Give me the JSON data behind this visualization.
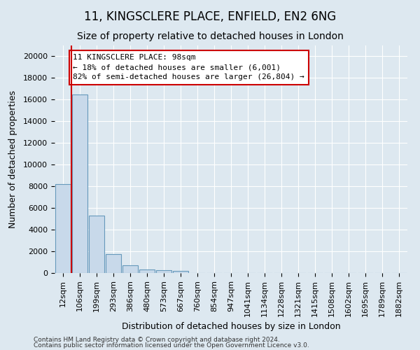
{
  "title1": "11, KINGSCLERE PLACE, ENFIELD, EN2 6NG",
  "title2": "Size of property relative to detached houses in London",
  "xlabel": "Distribution of detached houses by size in London",
  "ylabel": "Number of detached properties",
  "categories": [
    "12sqm",
    "106sqm",
    "199sqm",
    "293sqm",
    "386sqm",
    "480sqm",
    "573sqm",
    "667sqm",
    "760sqm",
    "854sqm",
    "947sqm",
    "1041sqm",
    "1134sqm",
    "1228sqm",
    "1321sqm",
    "1415sqm",
    "1508sqm",
    "1602sqm",
    "1695sqm",
    "1789sqm",
    "1882sqm"
  ],
  "values": [
    8200,
    16500,
    5300,
    1750,
    700,
    350,
    280,
    220,
    0,
    0,
    0,
    0,
    0,
    0,
    0,
    0,
    0,
    0,
    0,
    0,
    0
  ],
  "bar_color": "#c8d9ea",
  "bar_edge_color": "#6699bb",
  "marker_line_color": "#cc0000",
  "annotation_text": "11 KINGSCLERE PLACE: 98sqm\n← 18% of detached houses are smaller (6,001)\n82% of semi-detached houses are larger (26,804) →",
  "annotation_box_color": "#ffffff",
  "annotation_box_edgecolor": "#cc0000",
  "ylim": [
    0,
    21000
  ],
  "yticks": [
    0,
    2000,
    4000,
    6000,
    8000,
    10000,
    12000,
    14000,
    16000,
    18000,
    20000
  ],
  "footer1": "Contains HM Land Registry data © Crown copyright and database right 2024.",
  "footer2": "Contains public sector information licensed under the Open Government Licence v3.0.",
  "background_color": "#dde8f0",
  "plot_bg_color": "#dde8f0",
  "grid_color": "#ffffff",
  "title1_fontsize": 12,
  "title2_fontsize": 10,
  "xlabel_fontsize": 9,
  "ylabel_fontsize": 9,
  "tick_fontsize": 8,
  "annotation_fontsize": 8
}
